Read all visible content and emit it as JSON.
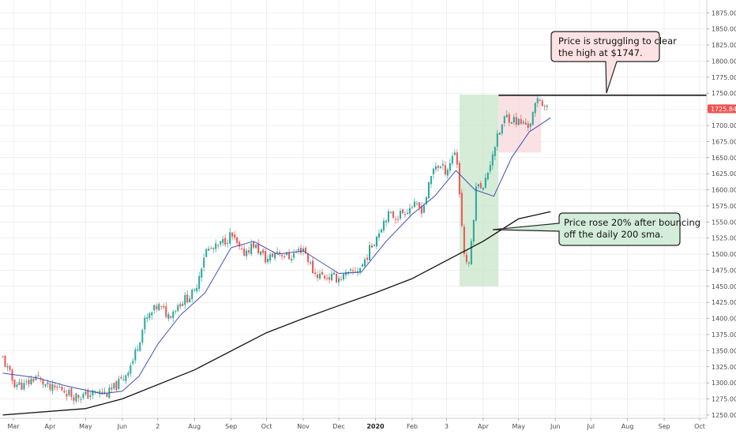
{
  "chart_data": {
    "type": "candlestick",
    "y_axis": {
      "min": 1245,
      "max": 1895,
      "ticks": [
        "1250.00",
        "1275.00",
        "1300.00",
        "1325.00",
        "1350.00",
        "1375.00",
        "1400.00",
        "1425.00",
        "1450.00",
        "1475.00",
        "1500.00",
        "1525.00",
        "1550.00",
        "1575.00",
        "1600.00",
        "1625.00",
        "1650.00",
        "1675.00",
        "1700.00",
        "1725.00",
        "1750.00",
        "1775.00",
        "1800.00",
        "1825.00",
        "1850.00",
        "1875.00"
      ],
      "position": "right"
    },
    "x_axis": {
      "labels": [
        {
          "text": "Mar",
          "date": "2019-03-01",
          "bold": false
        },
        {
          "text": "Apr",
          "date": "2019-04-01",
          "bold": false
        },
        {
          "text": "May",
          "date": "2019-05-01",
          "bold": false
        },
        {
          "text": "Jun",
          "date": "2019-06-01",
          "bold": false
        },
        {
          "text": "2",
          "date": "2019-07-01",
          "bold": false
        },
        {
          "text": "Aug",
          "date": "2019-08-01",
          "bold": false
        },
        {
          "text": "Sep",
          "date": "2019-09-01",
          "bold": false
        },
        {
          "text": "Oct",
          "date": "2019-10-01",
          "bold": false
        },
        {
          "text": "Nov",
          "date": "2019-11-01",
          "bold": false
        },
        {
          "text": "Dec",
          "date": "2019-12-01",
          "bold": false
        },
        {
          "text": "2020",
          "date": "2020-01-01",
          "bold": true
        },
        {
          "text": "Feb",
          "date": "2020-02-01",
          "bold": false
        },
        {
          "text": "3",
          "date": "2020-03-01",
          "bold": false
        },
        {
          "text": "Apr",
          "date": "2020-04-01",
          "bold": false
        },
        {
          "text": "May",
          "date": "2020-05-01",
          "bold": false
        },
        {
          "text": "Jun",
          "date": "2020-06-01",
          "bold": false
        },
        {
          "text": "Jul",
          "date": "2020-07-01",
          "bold": false
        },
        {
          "text": "Aug",
          "date": "2020-08-01",
          "bold": false
        },
        {
          "text": "Sep",
          "date": "2020-09-01",
          "bold": false
        },
        {
          "text": "Oct",
          "date": "2020-10-01",
          "bold": false
        }
      ]
    },
    "price_path": [
      {
        "date": "2019-02-20",
        "close": 1338
      },
      {
        "date": "2019-03-01",
        "close": 1300
      },
      {
        "date": "2019-03-10",
        "close": 1295
      },
      {
        "date": "2019-03-20",
        "close": 1310
      },
      {
        "date": "2019-04-01",
        "close": 1290
      },
      {
        "date": "2019-04-10",
        "close": 1292
      },
      {
        "date": "2019-04-20",
        "close": 1280
      },
      {
        "date": "2019-05-01",
        "close": 1280
      },
      {
        "date": "2019-05-10",
        "close": 1285
      },
      {
        "date": "2019-05-20",
        "close": 1283
      },
      {
        "date": "2019-06-01",
        "close": 1305
      },
      {
        "date": "2019-06-10",
        "close": 1335
      },
      {
        "date": "2019-06-20",
        "close": 1395
      },
      {
        "date": "2019-07-01",
        "close": 1420
      },
      {
        "date": "2019-07-10",
        "close": 1405
      },
      {
        "date": "2019-07-20",
        "close": 1425
      },
      {
        "date": "2019-08-01",
        "close": 1440
      },
      {
        "date": "2019-08-10",
        "close": 1505
      },
      {
        "date": "2019-08-20",
        "close": 1510
      },
      {
        "date": "2019-09-01",
        "close": 1530
      },
      {
        "date": "2019-09-10",
        "close": 1500
      },
      {
        "date": "2019-09-20",
        "close": 1515
      },
      {
        "date": "2019-10-01",
        "close": 1490
      },
      {
        "date": "2019-10-10",
        "close": 1505
      },
      {
        "date": "2019-10-20",
        "close": 1495
      },
      {
        "date": "2019-11-01",
        "close": 1510
      },
      {
        "date": "2019-11-10",
        "close": 1470
      },
      {
        "date": "2019-11-20",
        "close": 1465
      },
      {
        "date": "2019-12-01",
        "close": 1463
      },
      {
        "date": "2019-12-10",
        "close": 1468
      },
      {
        "date": "2019-12-20",
        "close": 1480
      },
      {
        "date": "2020-01-01",
        "close": 1525
      },
      {
        "date": "2020-01-10",
        "close": 1560
      },
      {
        "date": "2020-01-20",
        "close": 1560
      },
      {
        "date": "2020-02-01",
        "close": 1575
      },
      {
        "date": "2020-02-10",
        "close": 1570
      },
      {
        "date": "2020-02-20",
        "close": 1640
      },
      {
        "date": "2020-03-01",
        "close": 1630
      },
      {
        "date": "2020-03-09",
        "close": 1665
      },
      {
        "date": "2020-03-16",
        "close": 1500
      },
      {
        "date": "2020-03-20",
        "close": 1480
      },
      {
        "date": "2020-03-27",
        "close": 1620
      },
      {
        "date": "2020-04-01",
        "close": 1600
      },
      {
        "date": "2020-04-10",
        "close": 1665
      },
      {
        "date": "2020-04-20",
        "close": 1715
      },
      {
        "date": "2020-05-01",
        "close": 1705
      },
      {
        "date": "2020-05-10",
        "close": 1700
      },
      {
        "date": "2020-05-18",
        "close": 1745
      },
      {
        "date": "2020-05-25",
        "close": 1725
      }
    ],
    "current_price": "1725.84",
    "resistance": {
      "price": 1747,
      "from_date": "2020-04-14"
    },
    "sma_200": [
      {
        "date": "2019-02-20",
        "value": 1250
      },
      {
        "date": "2019-05-01",
        "value": 1260
      },
      {
        "date": "2019-06-01",
        "value": 1275
      },
      {
        "date": "2019-08-01",
        "value": 1320
      },
      {
        "date": "2019-10-01",
        "value": 1378
      },
      {
        "date": "2019-11-01",
        "value": 1400
      },
      {
        "date": "2019-12-01",
        "value": 1420
      },
      {
        "date": "2020-01-01",
        "value": 1440
      },
      {
        "date": "2020-02-01",
        "value": 1462
      },
      {
        "date": "2020-03-01",
        "value": 1490
      },
      {
        "date": "2020-04-01",
        "value": 1520
      },
      {
        "date": "2020-05-01",
        "value": 1555
      },
      {
        "date": "2020-05-28",
        "value": 1566
      }
    ],
    "sma_short": [
      {
        "date": "2019-02-20",
        "value": 1315
      },
      {
        "date": "2019-03-20",
        "value": 1308
      },
      {
        "date": "2019-04-15",
        "value": 1295
      },
      {
        "date": "2019-05-15",
        "value": 1283
      },
      {
        "date": "2019-06-01",
        "value": 1287
      },
      {
        "date": "2019-06-15",
        "value": 1310
      },
      {
        "date": "2019-07-01",
        "value": 1360
      },
      {
        "date": "2019-07-20",
        "value": 1405
      },
      {
        "date": "2019-08-10",
        "value": 1440
      },
      {
        "date": "2019-09-01",
        "value": 1510
      },
      {
        "date": "2019-09-20",
        "value": 1520
      },
      {
        "date": "2019-10-10",
        "value": 1500
      },
      {
        "date": "2019-11-01",
        "value": 1505
      },
      {
        "date": "2019-12-01",
        "value": 1470
      },
      {
        "date": "2019-12-20",
        "value": 1472
      },
      {
        "date": "2020-01-10",
        "value": 1520
      },
      {
        "date": "2020-02-01",
        "value": 1562
      },
      {
        "date": "2020-02-20",
        "value": 1590
      },
      {
        "date": "2020-03-09",
        "value": 1630
      },
      {
        "date": "2020-03-25",
        "value": 1600
      },
      {
        "date": "2020-04-10",
        "value": 1590
      },
      {
        "date": "2020-04-25",
        "value": 1650
      },
      {
        "date": "2020-05-10",
        "value": 1690
      },
      {
        "date": "2020-05-28",
        "value": 1712
      }
    ],
    "shaded_regions": [
      {
        "color": "#c8e6c9",
        "from_date": "2020-03-12",
        "to_date": "2020-04-14",
        "y_from": 1450,
        "y_to": 1748
      },
      {
        "color": "#f8d7da",
        "from_date": "2020-04-14",
        "to_date": "2020-05-20",
        "y_from": 1658,
        "y_to": 1748
      }
    ],
    "annotations": [
      {
        "id": "resistance-note",
        "lines": [
          "Price is struggling to clear",
          "the high at $1747."
        ],
        "background": "#fde2e4"
      },
      {
        "id": "sma-bounce-note",
        "lines": [
          "Price rose 20% after bouncing",
          "off the daily 200 sma."
        ],
        "background": "#d4edda"
      }
    ],
    "colors": {
      "up": "#26a69a",
      "down": "#ef5350",
      "sma_short": "#3f51b5",
      "sma_200": "#111111",
      "grid": "#e6e6e6",
      "badge": "#ef5350"
    }
  }
}
